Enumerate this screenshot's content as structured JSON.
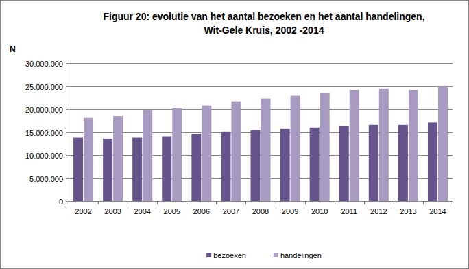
{
  "chart_data": {
    "type": "bar",
    "title": "Figuur 20: evolutie van het aantal bezoeken en het aantal handelingen, Wit-Gele Kruis, 2002 -2014",
    "y_label": "N",
    "categories": [
      "2002",
      "2003",
      "2004",
      "2005",
      "2006",
      "2007",
      "2008",
      "2009",
      "2010",
      "2011",
      "2012",
      "2013",
      "2014"
    ],
    "series": [
      {
        "name": "bezoeken",
        "color": "#66558c",
        "values": [
          13800000,
          13600000,
          13800000,
          14100000,
          14500000,
          15100000,
          15400000,
          15700000,
          16000000,
          16300000,
          16600000,
          16600000,
          17100000
        ]
      },
      {
        "name": "handelingen",
        "color": "#a89bc2",
        "values": [
          18100000,
          18500000,
          19800000,
          20200000,
          20800000,
          21700000,
          22300000,
          22900000,
          23500000,
          24200000,
          24500000,
          24200000,
          24900000
        ]
      }
    ],
    "ylim": [
      0,
      30000000
    ],
    "yticks": [
      0,
      {
        "value": 5000000,
        "label": "5.000.000"
      },
      {
        "value": 10000000,
        "label": "10.000.000"
      },
      {
        "value": 15000000,
        "label": "15.000.000"
      },
      {
        "value": 20000000,
        "label": "20.000.000"
      },
      {
        "value": 25000000,
        "label": "25.000.000"
      },
      {
        "value": 30000000,
        "label": "30.000.000"
      }
    ],
    "grid": true,
    "legend": "bottom"
  }
}
